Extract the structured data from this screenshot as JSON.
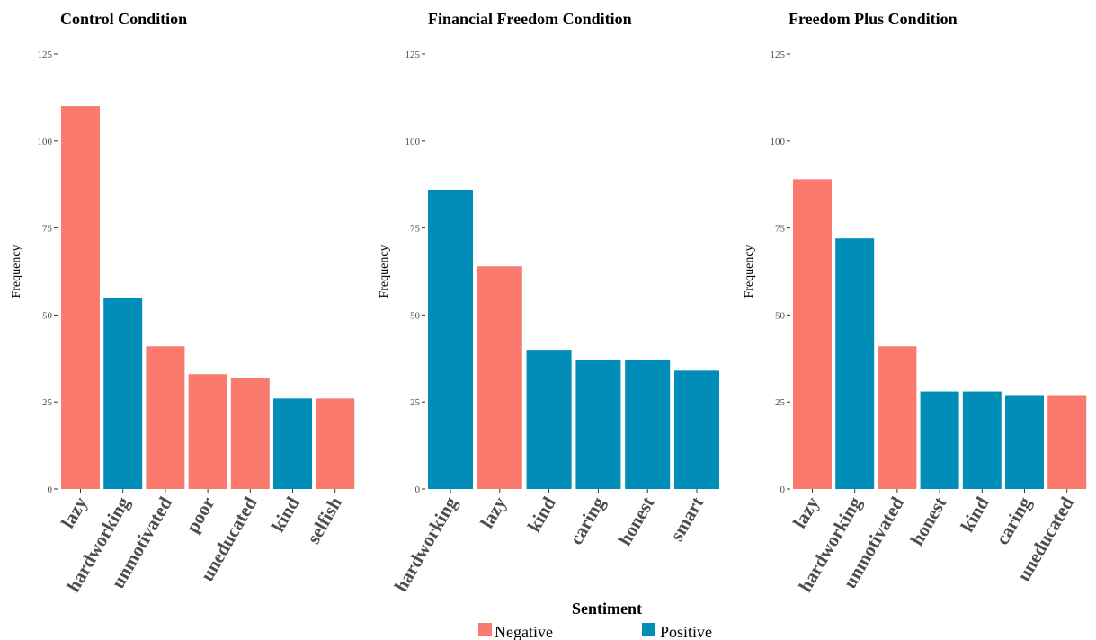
{
  "chart_data": [
    {
      "type": "bar",
      "title": "Control Condition",
      "ylabel": "Frequency",
      "ylim": [
        0,
        125
      ],
      "yticks": [
        0,
        25,
        50,
        75,
        100,
        125
      ],
      "categories": [
        "lazy",
        "hardworking",
        "unmotivated",
        "poor",
        "uneducated",
        "kind",
        "selfish"
      ],
      "values": [
        110,
        55,
        41,
        33,
        32,
        26,
        26
      ],
      "sentiment": [
        "Negative",
        "Positive",
        "Negative",
        "Negative",
        "Negative",
        "Positive",
        "Negative"
      ]
    },
    {
      "type": "bar",
      "title": "Financial Freedom Condition",
      "ylabel": "Frequency",
      "ylim": [
        0,
        125
      ],
      "yticks": [
        0,
        25,
        50,
        75,
        100,
        125
      ],
      "categories": [
        "hardworking",
        "lazy",
        "kind",
        "caring",
        "honest",
        "smart"
      ],
      "values": [
        86,
        64,
        40,
        37,
        37,
        34
      ],
      "sentiment": [
        "Positive",
        "Negative",
        "Positive",
        "Positive",
        "Positive",
        "Positive"
      ]
    },
    {
      "type": "bar",
      "title": "Freedom Plus Condition",
      "ylabel": "Frequency",
      "ylim": [
        0,
        125
      ],
      "yticks": [
        0,
        25,
        50,
        75,
        100,
        125
      ],
      "categories": [
        "lazy",
        "hardworking",
        "unmotivated",
        "honest",
        "kind",
        "caring",
        "uneducated"
      ],
      "values": [
        89,
        72,
        41,
        28,
        28,
        27,
        27
      ],
      "sentiment": [
        "Negative",
        "Positive",
        "Negative",
        "Positive",
        "Positive",
        "Positive",
        "Negative"
      ]
    }
  ],
  "legend": {
    "title": "Sentiment",
    "placement": "bottom",
    "items": [
      {
        "label": "Negative",
        "color": "#FA7B6E"
      },
      {
        "label": "Positive",
        "color": "#008DB8"
      }
    ]
  }
}
